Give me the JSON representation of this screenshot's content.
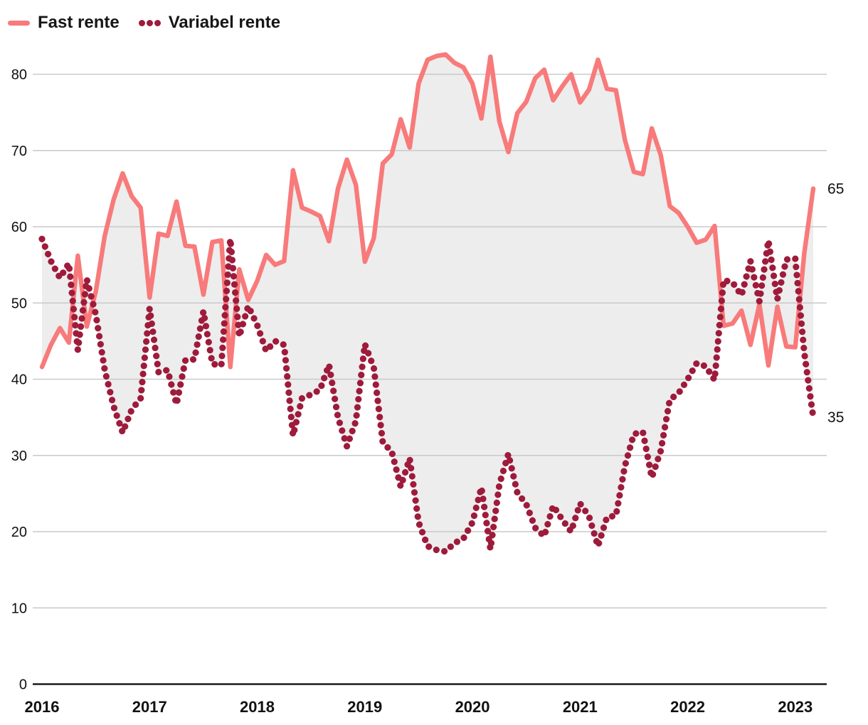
{
  "legend": {
    "items": [
      {
        "label": "Fast rente",
        "marker": "dash-icon",
        "color": "#f87a7a"
      },
      {
        "label": "Variabel rente",
        "marker": "dots-icon",
        "color": "#9e1b3b"
      }
    ]
  },
  "chart_data": {
    "type": "line",
    "title": "",
    "xlabel": "",
    "ylabel": "",
    "x": [
      "2016-01",
      "2016-02",
      "2016-03",
      "2016-04",
      "2016-05",
      "2016-06",
      "2016-07",
      "2016-08",
      "2016-09",
      "2016-10",
      "2016-11",
      "2016-12",
      "2017-01",
      "2017-02",
      "2017-03",
      "2017-04",
      "2017-05",
      "2017-06",
      "2017-07",
      "2017-08",
      "2017-09",
      "2017-10",
      "2017-11",
      "2017-12",
      "2018-01",
      "2018-02",
      "2018-03",
      "2018-04",
      "2018-05",
      "2018-06",
      "2018-07",
      "2018-08",
      "2018-09",
      "2018-10",
      "2018-11",
      "2018-12",
      "2019-01",
      "2019-02",
      "2019-03",
      "2019-04",
      "2019-05",
      "2019-06",
      "2019-07",
      "2019-08",
      "2019-09",
      "2019-10",
      "2019-11",
      "2019-12",
      "2020-01",
      "2020-02",
      "2020-03",
      "2020-04",
      "2020-05",
      "2020-06",
      "2020-07",
      "2020-08",
      "2020-09",
      "2020-10",
      "2020-11",
      "2020-12",
      "2021-01",
      "2021-02",
      "2021-03",
      "2021-04",
      "2021-05",
      "2021-06",
      "2021-07",
      "2021-08",
      "2021-09",
      "2021-10",
      "2021-11",
      "2021-12",
      "2022-01",
      "2022-02",
      "2022-03",
      "2022-04",
      "2022-05",
      "2022-06",
      "2022-07",
      "2022-08",
      "2022-09",
      "2022-10",
      "2022-11",
      "2022-12",
      "2023-01",
      "2023-02",
      "2023-03"
    ],
    "series": [
      {
        "name": "Fast rente",
        "style": "solid",
        "color": "#f87a7a",
        "values": [
          41.6,
          44.5,
          46.7,
          44.8,
          56.2,
          46.9,
          51.5,
          58.8,
          63.6,
          67.0,
          64.0,
          62.5,
          50.7,
          59.1,
          58.8,
          63.3,
          57.5,
          57.4,
          51.1,
          58.0,
          58.2,
          41.6,
          54.4,
          50.4,
          52.9,
          56.3,
          55.0,
          55.5,
          67.4,
          62.5,
          62.0,
          61.4,
          58.1,
          65.0,
          68.8,
          65.5,
          55.4,
          58.5,
          68.3,
          69.5,
          74.1,
          70.4,
          78.8,
          81.9,
          82.4,
          82.6,
          81.5,
          80.9,
          78.8,
          74.2,
          82.3,
          73.8,
          69.8,
          74.9,
          76.4,
          79.5,
          80.6,
          76.6,
          78.4,
          80.0,
          76.3,
          78.0,
          81.9,
          78.1,
          77.9,
          71.4,
          67.2,
          66.9,
          72.9,
          69.4,
          62.7,
          61.8,
          60.0,
          57.9,
          58.3,
          60.1,
          47.0,
          47.3,
          49.0,
          44.5,
          49.8,
          41.8,
          49.5,
          44.3,
          44.2,
          56.5,
          65.0
        ]
      },
      {
        "name": "Variabel rente",
        "style": "dotted",
        "color": "#9e1b3b",
        "values": [
          58.4,
          55.5,
          53.3,
          55.2,
          43.8,
          53.1,
          48.5,
          41.2,
          36.4,
          33.0,
          36.0,
          37.5,
          49.3,
          40.9,
          41.2,
          36.7,
          42.5,
          42.6,
          48.9,
          42.0,
          41.8,
          58.4,
          45.6,
          49.6,
          47.1,
          43.7,
          45.0,
          44.5,
          32.6,
          37.5,
          38.0,
          38.6,
          41.9,
          35.0,
          31.2,
          34.5,
          44.6,
          41.5,
          31.7,
          30.5,
          25.9,
          29.6,
          21.2,
          18.1,
          17.6,
          17.4,
          18.5,
          19.1,
          21.2,
          25.8,
          17.7,
          26.2,
          30.2,
          25.1,
          23.6,
          20.5,
          19.4,
          23.4,
          21.6,
          20.0,
          23.7,
          22.0,
          18.1,
          21.9,
          22.1,
          28.6,
          32.8,
          33.1,
          27.1,
          30.6,
          37.3,
          38.2,
          40.0,
          42.1,
          41.7,
          39.9,
          53.0,
          52.7,
          51.0,
          55.5,
          50.2,
          58.2,
          50.5,
          55.7,
          55.8,
          43.5,
          35.0
        ]
      }
    ],
    "end_labels": [
      {
        "text": "65",
        "series": "Fast rente"
      },
      {
        "text": "35",
        "series": "Variabel rente"
      }
    ],
    "yticks": [
      0,
      10,
      20,
      30,
      40,
      50,
      60,
      70,
      80
    ],
    "xticks": [
      "2016",
      "2017",
      "2018",
      "2019",
      "2020",
      "2021",
      "2022",
      "2023"
    ],
    "ylim": [
      0,
      85
    ],
    "grid": true,
    "legend_position": "top-left",
    "band_fill_color": "#ededed",
    "grid_color": "#c9c9c9",
    "axis_color": "#1a1a1a",
    "tick_label_color": "#111111"
  }
}
